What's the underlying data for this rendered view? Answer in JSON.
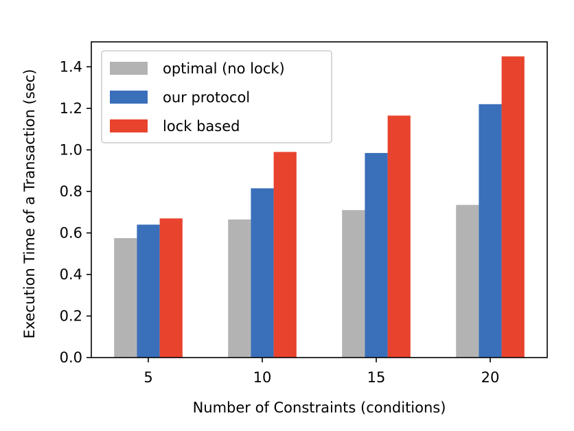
{
  "chart_data": {
    "type": "bar",
    "title": "",
    "xlabel": "Number of Constraints (conditions)",
    "ylabel": "Execution Time of a Transaction (sec)",
    "categories": [
      "5",
      "10",
      "15",
      "20"
    ],
    "series": [
      {
        "name": "optimal (no lock)",
        "color": "#b3b3b3",
        "values": [
          0.575,
          0.665,
          0.71,
          0.735
        ]
      },
      {
        "name": "our protocol",
        "color": "#3a6fba",
        "values": [
          0.64,
          0.815,
          0.985,
          1.22
        ]
      },
      {
        "name": "lock based",
        "color": "#e8432d",
        "values": [
          0.67,
          0.99,
          1.165,
          1.45
        ]
      }
    ],
    "ylim": [
      0,
      1.52
    ],
    "yticks": [
      "0.0",
      "0.2",
      "0.4",
      "0.6",
      "0.8",
      "1.0",
      "1.2",
      "1.4"
    ],
    "legend_position": "top-left",
    "grid": false
  }
}
